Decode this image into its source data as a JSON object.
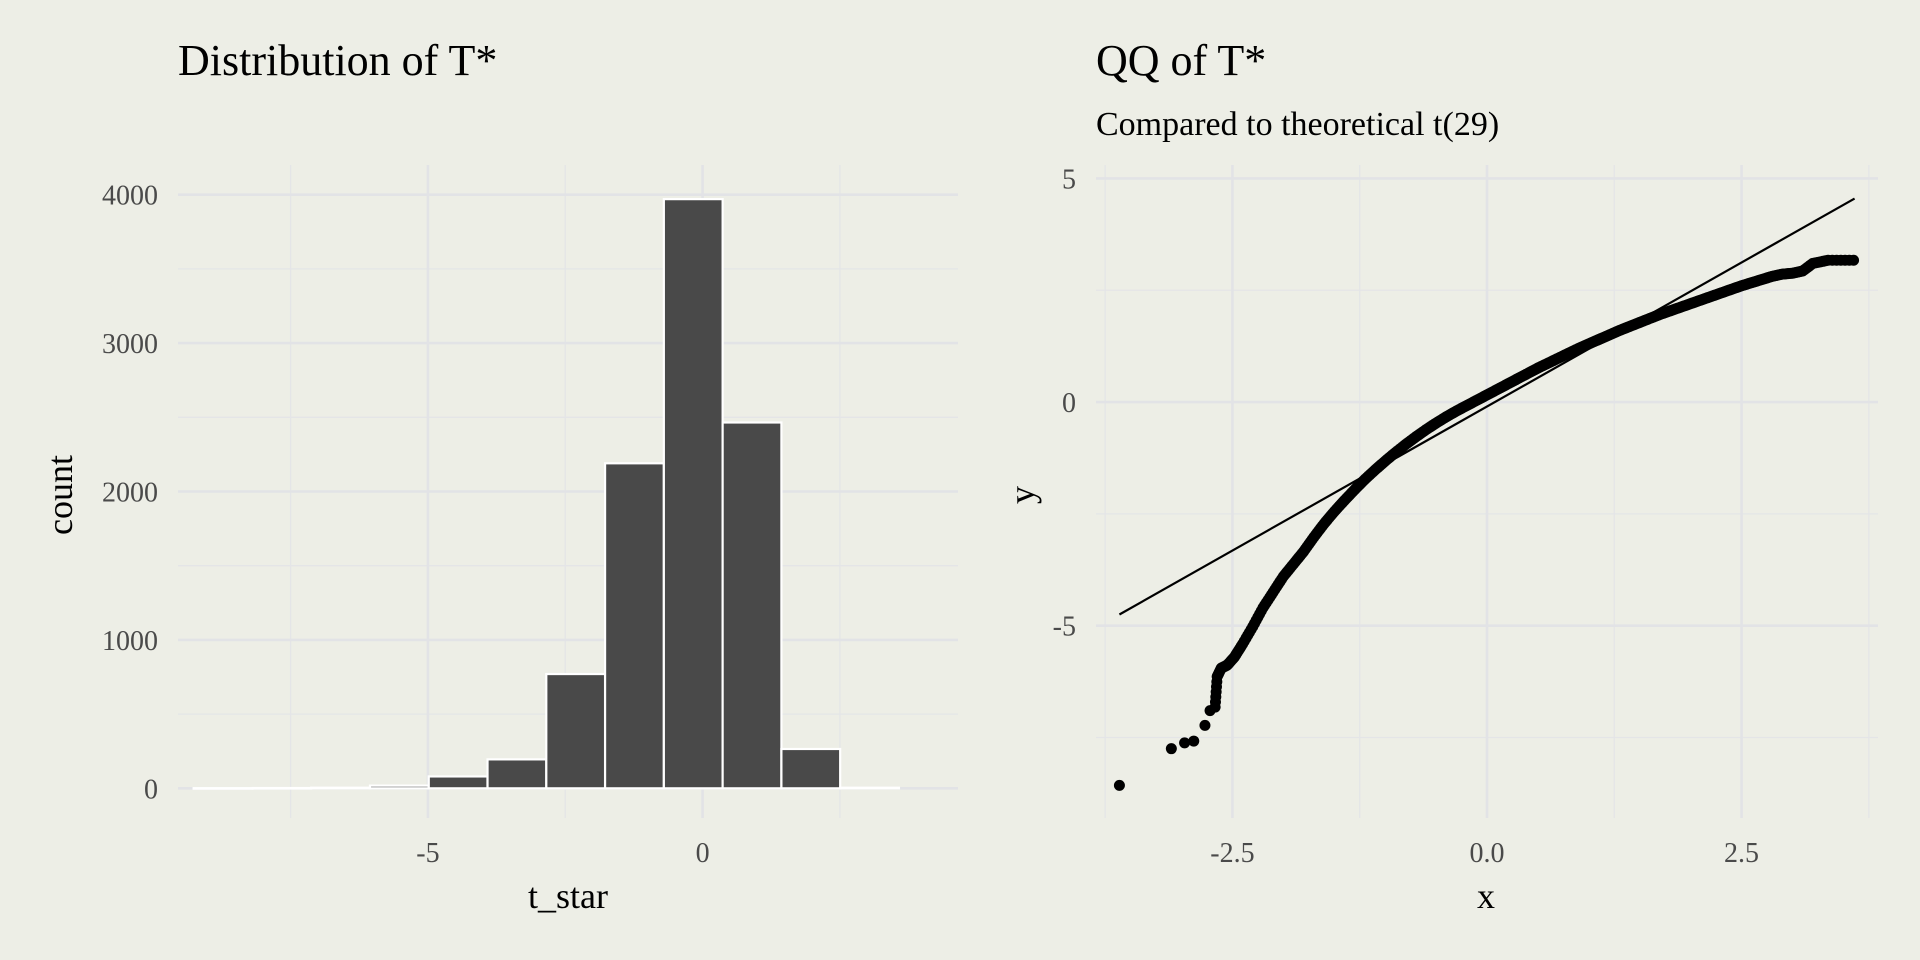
{
  "chart_data": [
    {
      "type": "bar",
      "title": "Distribution of T*",
      "subtitle": "",
      "xlabel": "t_star",
      "ylabel": "count",
      "bin_width": 1.07,
      "bins": [
        {
          "center": -8.73,
          "count": 1
        },
        {
          "center": -7.66,
          "count": 2
        },
        {
          "center": -6.59,
          "count": 4
        },
        {
          "center": -5.52,
          "count": 18
        },
        {
          "center": -4.45,
          "count": 80
        },
        {
          "center": -3.38,
          "count": 195
        },
        {
          "center": -2.31,
          "count": 770
        },
        {
          "center": -1.24,
          "count": 2190
        },
        {
          "center": -0.17,
          "count": 3970
        },
        {
          "center": 0.9,
          "count": 2465
        },
        {
          "center": 1.97,
          "count": 265
        },
        {
          "center": 3.04,
          "count": 4
        }
      ],
      "xlim": [
        -9.55,
        4.65
      ],
      "ylim": [
        -200,
        4200
      ],
      "x_ticks": [
        -5,
        0
      ],
      "x_tick_labels": [
        "-5",
        "0"
      ],
      "y_ticks": [
        0,
        1000,
        2000,
        3000,
        4000
      ],
      "y_tick_labels": [
        "0",
        "1000",
        "2000",
        "3000",
        "4000"
      ],
      "grid": true
    },
    {
      "type": "scatter",
      "title": "QQ of T*",
      "subtitle": "Compared to theoretical t(29)",
      "xlabel": "x",
      "ylabel": "y",
      "reference_line": {
        "x": [
          -3.61,
          3.61
        ],
        "y": [
          -4.75,
          4.55
        ]
      },
      "points": {
        "x": [
          -3.61,
          -3.1,
          -2.97,
          -2.88,
          -2.77,
          -2.72,
          -2.67,
          -2.65,
          -2.61,
          -2.55,
          -2.48,
          -2.4,
          -2.3,
          -2.2,
          -2.1,
          -2.0,
          -1.9,
          -1.8,
          -1.7,
          -1.6,
          -1.5,
          -1.4,
          -1.3,
          -1.2,
          -1.1,
          -1.0,
          -0.9,
          -0.8,
          -0.7,
          -0.6,
          -0.5,
          -0.4,
          -0.3,
          -0.2,
          -0.1,
          0.0,
          0.1,
          0.2,
          0.3,
          0.4,
          0.5,
          0.6,
          0.7,
          0.8,
          0.9,
          1.0,
          1.1,
          1.2,
          1.3,
          1.4,
          1.5,
          1.6,
          1.7,
          1.8,
          1.9,
          2.0,
          2.1,
          2.2,
          2.3,
          2.4,
          2.5,
          2.6,
          2.7,
          2.8,
          2.9,
          3.0,
          3.1,
          3.2,
          3.35,
          3.6
        ],
        "y": [
          -8.57,
          -7.75,
          -7.62,
          -7.58,
          -7.23,
          -6.9,
          -6.82,
          -6.14,
          -5.95,
          -5.88,
          -5.7,
          -5.41,
          -5.02,
          -4.6,
          -4.25,
          -3.9,
          -3.62,
          -3.34,
          -3.02,
          -2.72,
          -2.45,
          -2.2,
          -1.96,
          -1.73,
          -1.52,
          -1.32,
          -1.13,
          -0.95,
          -0.78,
          -0.62,
          -0.47,
          -0.33,
          -0.2,
          -0.08,
          0.04,
          0.16,
          0.28,
          0.4,
          0.52,
          0.64,
          0.76,
          0.87,
          0.98,
          1.09,
          1.2,
          1.3,
          1.4,
          1.5,
          1.6,
          1.69,
          1.78,
          1.87,
          1.96,
          2.04,
          2.12,
          2.2,
          2.28,
          2.36,
          2.44,
          2.52,
          2.6,
          2.67,
          2.74,
          2.81,
          2.86,
          2.88,
          2.93,
          3.1,
          3.17,
          3.17
        ]
      },
      "xlim": [
        -3.84,
        3.84
      ],
      "ylim": [
        -9.3,
        5.3
      ],
      "x_ticks": [
        -2.5,
        0.0,
        2.5
      ],
      "x_tick_labels": [
        "-2.5",
        "0.0",
        "2.5"
      ],
      "y_ticks": [
        -5,
        0,
        5
      ],
      "y_tick_labels": [
        "-5",
        "0",
        "5"
      ],
      "grid": true
    }
  ]
}
